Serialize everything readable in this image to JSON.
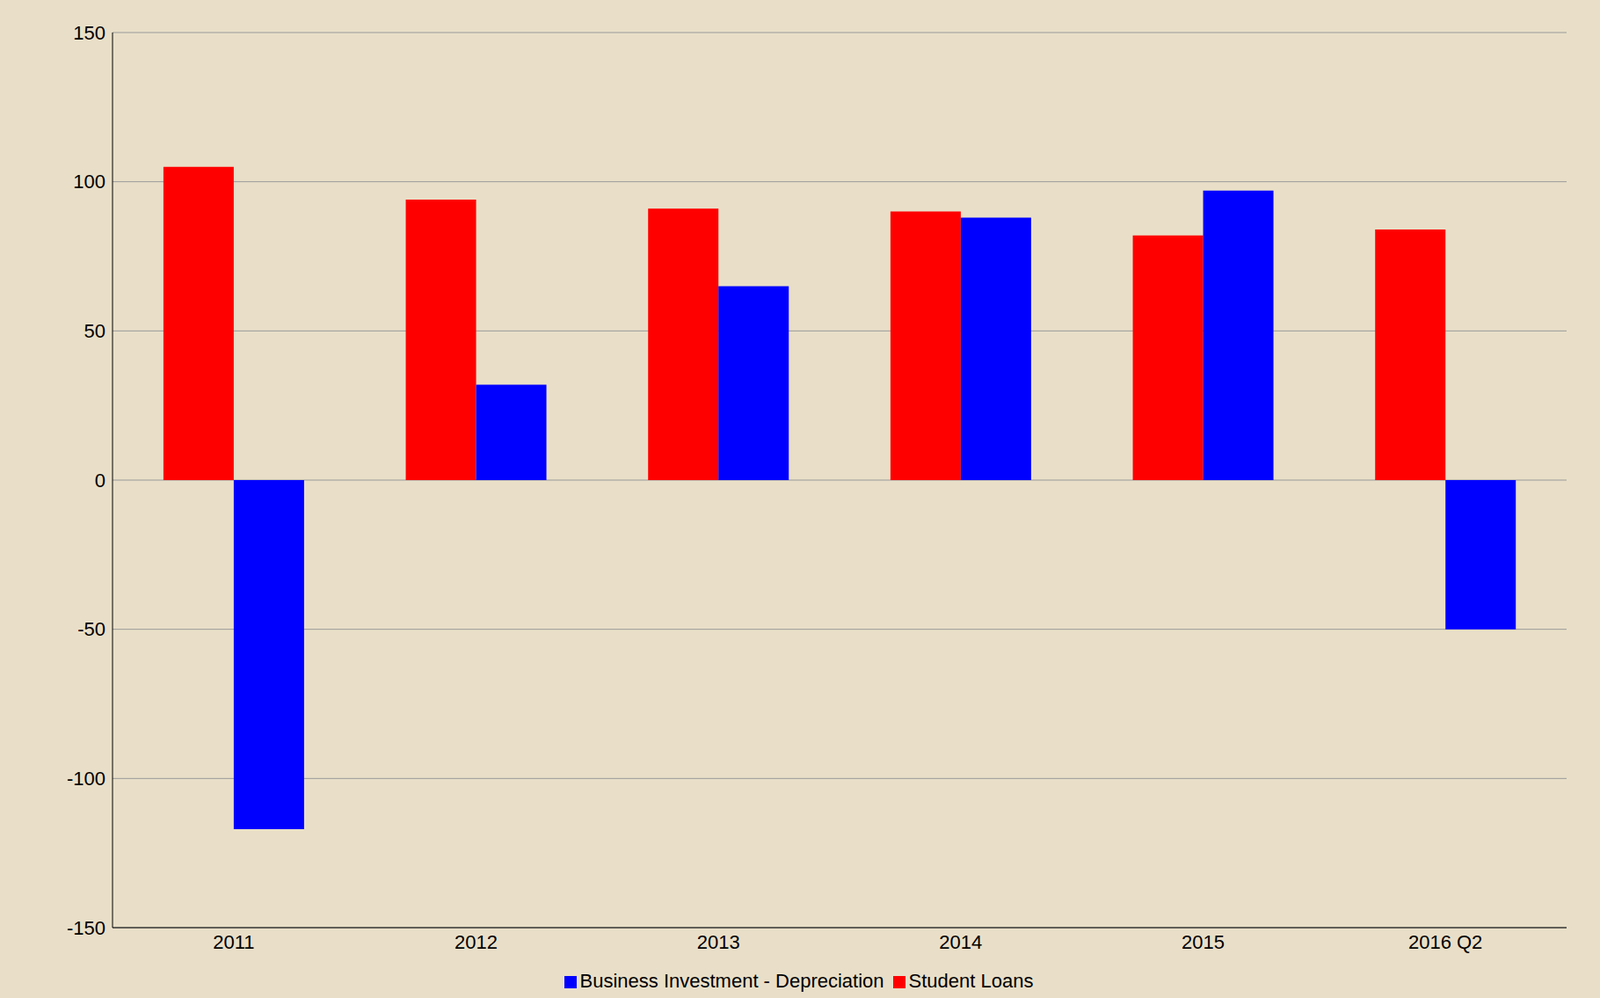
{
  "chart_data": {
    "type": "bar",
    "categories": [
      "2011",
      "2012",
      "2013",
      "2014",
      "2015",
      "2016 Q2"
    ],
    "series": [
      {
        "name": "Student Loans",
        "color": "#ff0000",
        "values": [
          105,
          94,
          91,
          90,
          82,
          84
        ]
      },
      {
        "name": "Business Investment - Depreciation",
        "color": "#0000ff",
        "values": [
          -117,
          32,
          65,
          88,
          97,
          -50
        ]
      }
    ],
    "ylim": [
      -150,
      150
    ],
    "yticks": [
      -150,
      -100,
      -50,
      0,
      50,
      100,
      150
    ],
    "grid": true,
    "legend": "bottom"
  }
}
